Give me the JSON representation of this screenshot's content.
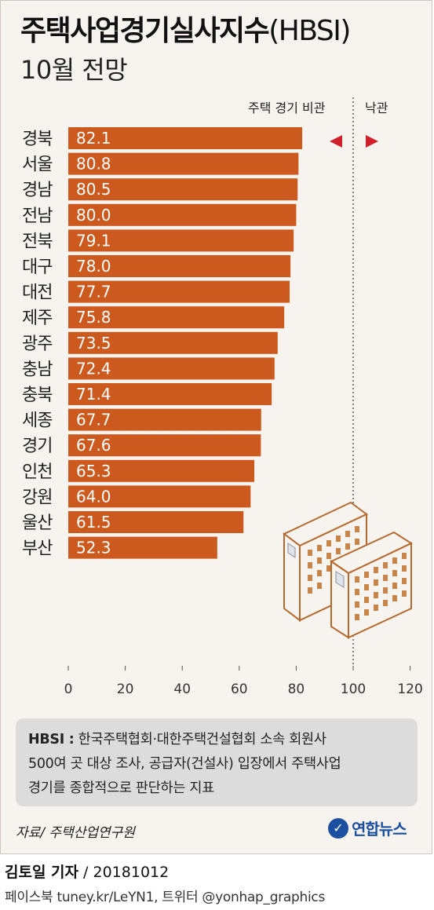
{
  "title": "주택사업경기실사지수",
  "title_paren": "(HBSI)",
  "subtitle": "10월 전망",
  "annotations": {
    "pessimistic": "주택 경기 비관",
    "optimistic": "낙관"
  },
  "note": {
    "term": "HBSI :",
    "line1": "한국주택협회·대한주택건설협회 소속 회원사",
    "line2": "500여 곳 대상 조사, 공급자(건설사) 입장에서 주택사업",
    "line3": "경기를 종합적으로 판단하는 지표"
  },
  "source": "자료/ 주택산업연구원",
  "logo_text": "연합뉴스",
  "byline": {
    "reporter": "김토일 기자",
    "date": " / 20181012"
  },
  "social": "페이스북 tuney.kr/LeYN1, 트위터 @yonhap_graphics",
  "colors": {
    "bar": "#cc5a1e",
    "panel": "#f7f3ee",
    "arrow": "#d0202a",
    "logo": "#1b4fa0"
  },
  "chart_data": {
    "type": "bar",
    "orientation": "horizontal",
    "categories": [
      "경북",
      "서울",
      "경남",
      "전남",
      "전북",
      "대구",
      "대전",
      "제주",
      "광주",
      "충남",
      "충북",
      "세종",
      "경기",
      "인천",
      "강원",
      "울산",
      "부산"
    ],
    "values": [
      82.1,
      80.8,
      80.5,
      80.0,
      79.1,
      78.0,
      77.7,
      75.8,
      73.5,
      72.4,
      71.4,
      67.7,
      67.6,
      65.3,
      64.0,
      61.5,
      52.3
    ],
    "value_labels": [
      "82.1",
      "80.8",
      "80.5",
      "80.0",
      "79.1",
      "78.0",
      "77.7",
      "75.8",
      "73.5",
      "72.4",
      "71.4",
      "67.7",
      "67.6",
      "65.3",
      "64.0",
      "61.5",
      "52.3"
    ],
    "xlim": [
      0,
      120
    ],
    "ticks": [
      0,
      20,
      40,
      60,
      80,
      100,
      120
    ],
    "tick_labels": [
      "0",
      "20",
      "40",
      "60",
      "80",
      "100",
      "120"
    ],
    "reference_line": 100,
    "grid": false
  }
}
